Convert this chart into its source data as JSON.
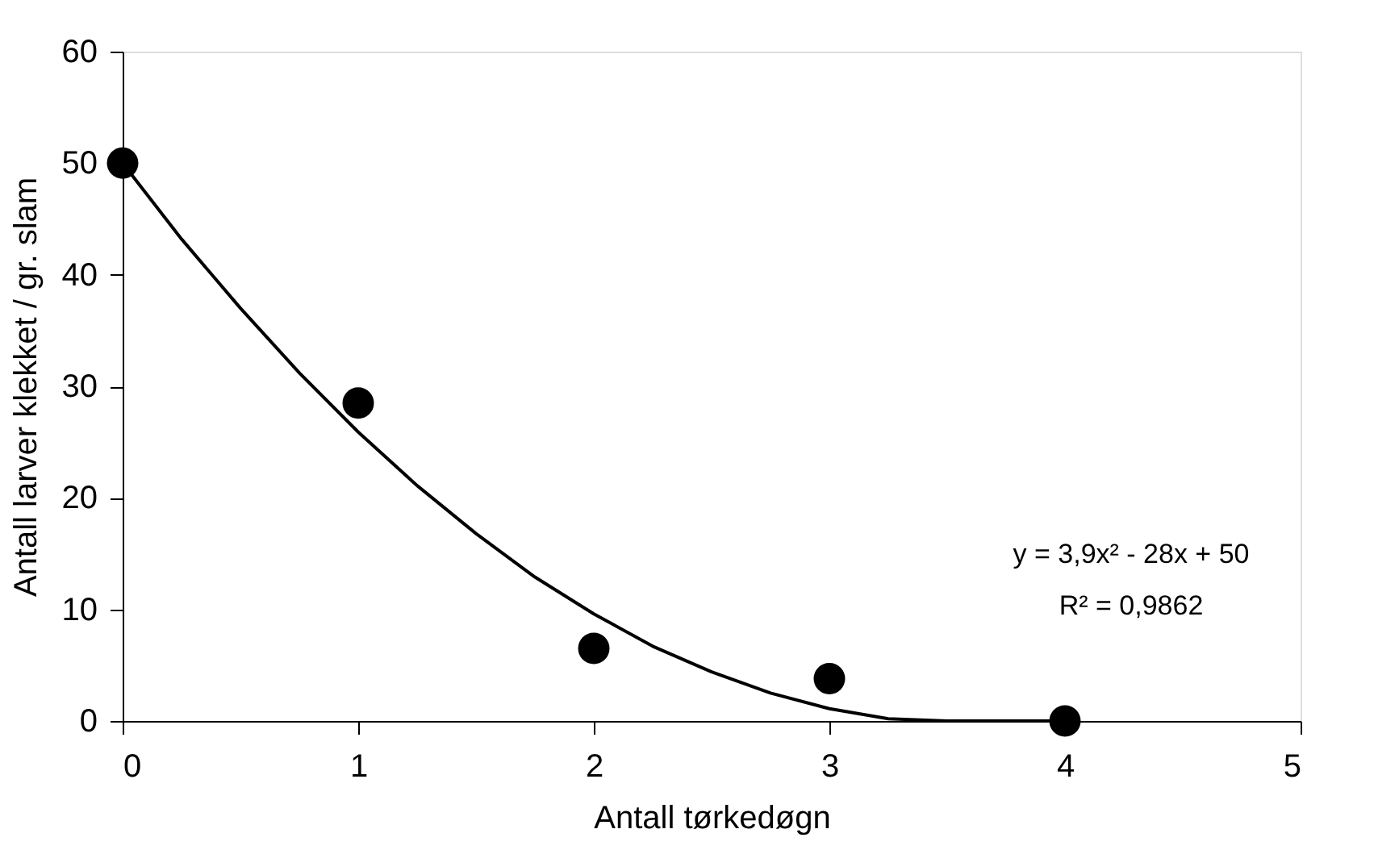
{
  "chart_data": {
    "type": "scatter",
    "xlabel": "Antall tørkedøgn",
    "ylabel": "Antall larver klekket / gr. slam",
    "series": [
      {
        "color": "#000000",
        "marker": "circle",
        "x": [
          0,
          1,
          2,
          3,
          4
        ],
        "values": [
          50,
          28.5,
          6.5,
          3.8,
          0
        ]
      },
      {
        "type": "line",
        "color": "#000000",
        "line_style": "solid",
        "x": [
          0,
          0.25,
          0.5,
          0.75,
          1,
          1.25,
          1.5,
          1.75,
          2,
          2.25,
          2.5,
          2.75,
          3,
          3.25,
          3.5,
          3.75,
          4
        ],
        "values": [
          50,
          43.2,
          37,
          31.2,
          25.9,
          21.1,
          16.8,
          12.9,
          9.6,
          6.7,
          4.4,
          2.5,
          1.1,
          0.2,
          0,
          0,
          0
        ]
      }
    ],
    "annotations": [
      "y = 3,9x² - 28x + 50",
      "R² = 0,9862"
    ],
    "xlim": [
      0,
      5
    ],
    "xticks": [
      0,
      1,
      2,
      3,
      4,
      5
    ],
    "ylim": [
      0,
      60
    ],
    "yticks": [
      0,
      10,
      20,
      30,
      40,
      50,
      60
    ],
    "grid": false
  }
}
